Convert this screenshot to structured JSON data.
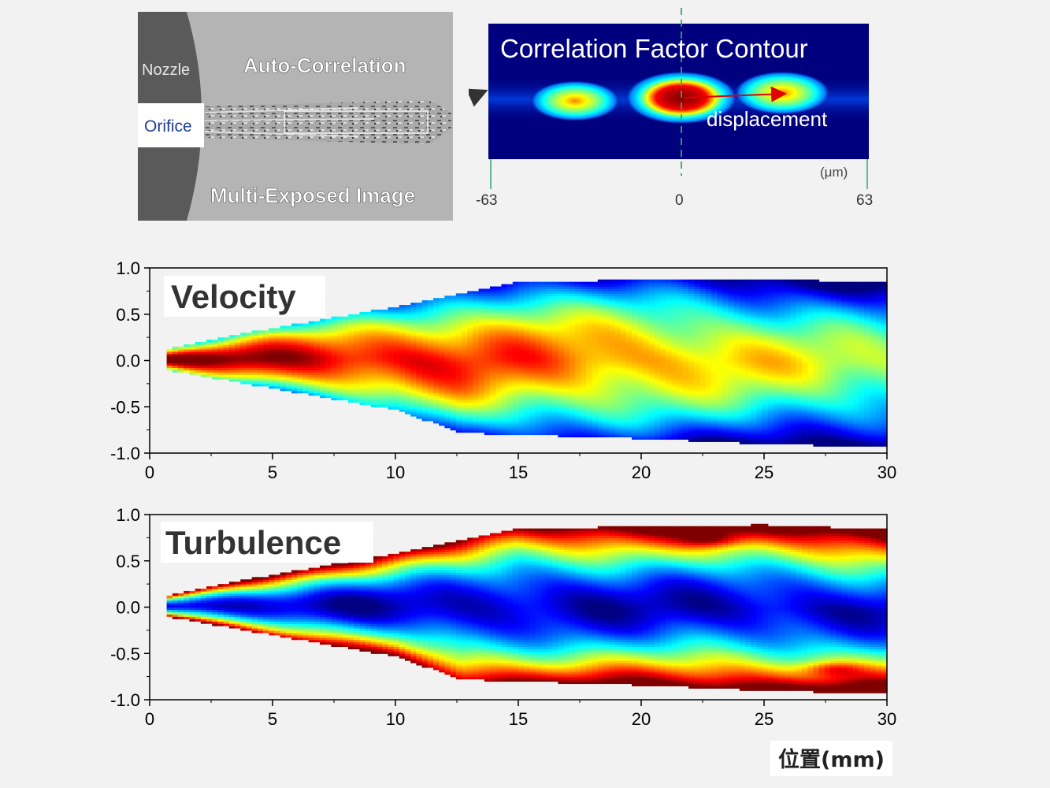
{
  "photo": {
    "nozzle_label": "Nozzle",
    "orifice_label": "Orifice",
    "auto_label": "Auto-Correlation",
    "multi_label": "Multi-Exposed Image"
  },
  "contour": {
    "title": "Correlation Factor Contour",
    "displacement_label": "displacement",
    "unit": "(μm)",
    "ticks": [
      "-63",
      "0",
      "63"
    ]
  },
  "colors": {
    "jet": [
      "#00007f",
      "#0000ff",
      "#007fff",
      "#00ffff",
      "#7fff7f",
      "#ffff00",
      "#ff7f00",
      "#ff0000",
      "#7f0000"
    ],
    "background": "#f2f2f2",
    "image_bg": "#00007f"
  },
  "x_axis_label": "位置(mm)",
  "chart_data": [
    {
      "type": "heatmap",
      "title": "Velocity",
      "xlim": [
        0,
        30
      ],
      "ylim": [
        -1.0,
        1.0
      ],
      "xticks": [
        "0",
        "5",
        "10",
        "15",
        "20",
        "25",
        "30"
      ],
      "yticks": [
        "1.0",
        "0.5",
        "0.0",
        "-0.5",
        "-1.0"
      ],
      "xlabel": "位置(mm)",
      "ylabel": "",
      "grid": false,
      "colormap": "jet",
      "spray_upper_edge": [
        [
          0.7,
          0.13
        ],
        [
          5,
          0.35
        ],
        [
          10,
          0.58
        ],
        [
          15,
          0.85
        ],
        [
          20,
          0.87
        ],
        [
          25,
          0.88
        ],
        [
          30,
          0.84
        ]
      ],
      "spray_lower_edge": [
        [
          0.7,
          -0.1
        ],
        [
          5,
          -0.3
        ],
        [
          10,
          -0.53
        ],
        [
          12.7,
          -0.78
        ],
        [
          20,
          -0.84
        ],
        [
          25,
          -0.9
        ],
        [
          30,
          -0.93
        ]
      ],
      "profile_note": "maximum on centerline, decreasing toward edges",
      "centerline_peak_x": 3,
      "centerline_decay": 0.45
    },
    {
      "type": "heatmap",
      "title": "Turbulence",
      "xlim": [
        0,
        30
      ],
      "ylim": [
        -1.0,
        1.0
      ],
      "xticks": [
        "0",
        "5",
        "10",
        "15",
        "20",
        "25",
        "30"
      ],
      "yticks": [
        "1.0",
        "0.5",
        "0.0",
        "-0.5",
        "-1.0"
      ],
      "xlabel": "位置(mm)",
      "ylabel": "",
      "grid": false,
      "colormap": "jet",
      "spray_upper_edge": [
        [
          0.7,
          0.13
        ],
        [
          5,
          0.35
        ],
        [
          10,
          0.58
        ],
        [
          15,
          0.85
        ],
        [
          20,
          0.87
        ],
        [
          25,
          0.89
        ],
        [
          30,
          0.84
        ]
      ],
      "spray_lower_edge": [
        [
          0.7,
          -0.1
        ],
        [
          5,
          -0.3
        ],
        [
          10,
          -0.53
        ],
        [
          12.7,
          -0.78
        ],
        [
          20,
          -0.84
        ],
        [
          25,
          -0.9
        ],
        [
          30,
          -0.93
        ]
      ],
      "profile_note": "minimum on centerline, increasing toward edges",
      "hotspots": [
        [
          22.8,
          0.74
        ],
        [
          27.8,
          -0.66
        ]
      ]
    }
  ]
}
